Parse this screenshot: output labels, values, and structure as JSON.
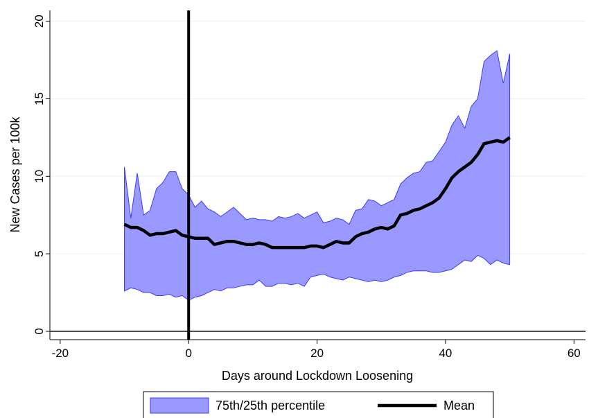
{
  "chart_data": {
    "type": "band_line",
    "x_label": "Days around Lockdown Loosening",
    "y_label": "New Cases per 100k",
    "x": [
      -10,
      -9,
      -8,
      -7,
      -6,
      -5,
      -4,
      -3,
      -2,
      -1,
      0,
      1,
      2,
      3,
      4,
      5,
      6,
      7,
      8,
      9,
      10,
      11,
      12,
      13,
      14,
      15,
      16,
      17,
      18,
      19,
      20,
      21,
      22,
      23,
      24,
      25,
      26,
      27,
      28,
      29,
      30,
      31,
      32,
      33,
      34,
      35,
      36,
      37,
      38,
      39,
      40,
      41,
      42,
      43,
      44,
      45,
      46,
      47,
      48,
      49,
      50
    ],
    "series": [
      {
        "name": "75th/25th percentile",
        "color": "#9999ff",
        "edge_color": "#3a3aff",
        "upper": [
          10.6,
          7.3,
          10.2,
          7.5,
          7.8,
          9.2,
          9.6,
          10.3,
          10.3,
          9.2,
          8.8,
          8.0,
          8.4,
          7.9,
          7.7,
          7.4,
          7.7,
          8.0,
          7.6,
          7.2,
          7.3,
          7.2,
          7.2,
          7.1,
          7.4,
          7.3,
          7.4,
          7.6,
          7.3,
          7.5,
          7.7,
          7.0,
          7.1,
          7.3,
          7.2,
          6.9,
          7.8,
          7.9,
          8.5,
          8.4,
          8.1,
          8.3,
          8.5,
          9.5,
          9.9,
          10.2,
          10.3,
          10.9,
          11.0,
          11.6,
          12.2,
          13.3,
          13.9,
          13.1,
          14.5,
          15.0,
          17.4,
          17.8,
          18.1,
          16.0,
          17.9
        ],
        "lower": [
          2.6,
          2.8,
          2.7,
          2.5,
          2.5,
          2.3,
          2.3,
          2.4,
          2.2,
          2.3,
          2.0,
          2.2,
          2.3,
          2.5,
          2.7,
          2.6,
          2.8,
          2.8,
          2.9,
          3.0,
          3.0,
          3.3,
          2.9,
          2.9,
          3.1,
          3.1,
          3.0,
          3.1,
          2.9,
          3.5,
          3.6,
          3.7,
          3.5,
          3.4,
          3.3,
          3.5,
          3.4,
          3.3,
          3.2,
          3.3,
          3.2,
          3.3,
          3.5,
          3.6,
          3.8,
          3.9,
          3.9,
          3.9,
          3.8,
          3.8,
          3.9,
          4.0,
          4.3,
          4.6,
          4.5,
          4.9,
          4.7,
          4.3,
          4.6,
          4.4,
          4.3
        ]
      },
      {
        "name": "Mean",
        "color": "#000000",
        "values": [
          6.9,
          6.7,
          6.7,
          6.5,
          6.2,
          6.3,
          6.3,
          6.4,
          6.5,
          6.2,
          6.1,
          6.0,
          6.0,
          6.0,
          5.6,
          5.7,
          5.8,
          5.8,
          5.7,
          5.6,
          5.6,
          5.7,
          5.6,
          5.4,
          5.4,
          5.4,
          5.4,
          5.4,
          5.4,
          5.5,
          5.5,
          5.4,
          5.6,
          5.8,
          5.7,
          5.7,
          6.1,
          6.3,
          6.4,
          6.6,
          6.7,
          6.6,
          6.8,
          7.5,
          7.6,
          7.8,
          7.9,
          8.1,
          8.3,
          8.6,
          9.2,
          9.9,
          10.3,
          10.6,
          10.9,
          11.4,
          12.1,
          12.2,
          12.3,
          12.2,
          12.5
        ]
      }
    ],
    "xlim": [
      -21.6,
      61.8
    ],
    "ylim": [
      -0.54,
      20.7
    ],
    "xticks": [
      -20,
      0,
      20,
      40,
      60
    ],
    "yticks": [
      0,
      5,
      10,
      15,
      20
    ],
    "reference_lines": {
      "x": 0,
      "y": 0
    },
    "grid": true,
    "grid_color": "#eaf2f3",
    "legend_position": "bottom"
  }
}
